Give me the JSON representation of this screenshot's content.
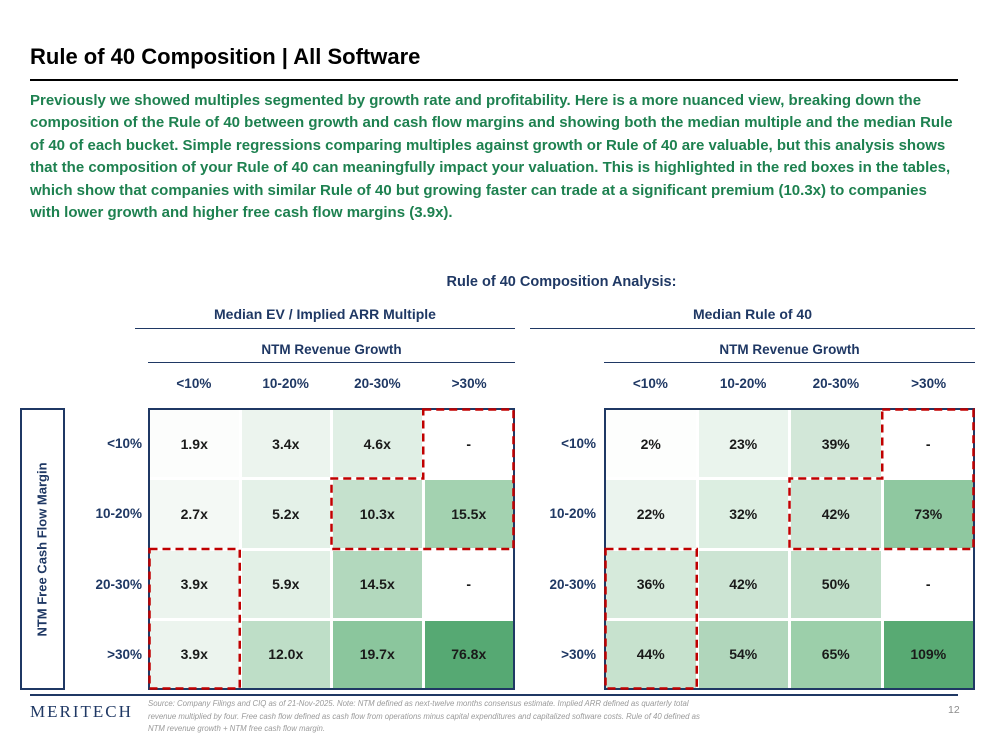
{
  "slide": {
    "title": "Rule of 40 Composition | All Software",
    "intro": "Previously we showed multiples segmented by growth rate and profitability. Here is a more nuanced view, breaking down the composition of the Rule of 40 between growth and cash flow margins and showing both the median multiple and the median Rule of 40 of each bucket. Simple regressions comparing multiples against growth or Rule of 40 are valuable, but this analysis shows that the composition of your Rule of 40 can meaningfully impact your valuation. This is highlighted in the red boxes in the tables, which show that companies with similar Rule of 40 but growing faster can trade at a significant premium (10.3x) to companies with lower growth and higher free cash flow margins (3.9x).",
    "section_heading": "Rule of 40 Composition Analysis:"
  },
  "footer": {
    "logo": "MERITECH",
    "page_number": "12",
    "source_lines": [
      "Source: Company Filings and CIQ as of 21-Nov-2025. Note: NTM defined as next-twelve months consensus estimate. Implied ARR defined as quarterly total",
      "revenue multiplied by four. Free cash flow defined as cash flow from operations minus capital expenditures and capitalized software costs. Rule of 40 defined as",
      "NTM revenue growth + NTM free cash flow margin."
    ]
  },
  "colors": {
    "navy": "#1f3864",
    "green_text": "#1e8150",
    "highlight_red": "#c00000"
  },
  "chart_data": [
    {
      "type": "heatmap",
      "title": "Median EV / Implied ARR Multiple",
      "x_axis_label": "NTM Revenue Growth",
      "y_axis_label": "NTM Free Cash Flow Margin",
      "x_categories": [
        "<10%",
        "10-20%",
        "20-30%",
        ">30%"
      ],
      "y_categories": [
        "<10%",
        "10-20%",
        "20-30%",
        ">30%"
      ],
      "values": [
        [
          "1.9x",
          "3.4x",
          "4.6x",
          "-"
        ],
        [
          "2.7x",
          "5.2x",
          "10.3x",
          "15.5x"
        ],
        [
          "3.9x",
          "5.9x",
          "14.5x",
          "-"
        ],
        [
          "3.9x",
          "12.0x",
          "19.7x",
          "76.8x"
        ]
      ],
      "cell_colors": [
        [
          "#fcfdfc",
          "#ecf4ee",
          "#e0efe5",
          "#ffffff"
        ],
        [
          "#f4f9f5",
          "#e4f1e8",
          "#c5e1cd",
          "#a3d2b0"
        ],
        [
          "#ecf4ee",
          "#e2f0e6",
          "#b2d8bd",
          "#ffffff"
        ],
        [
          "#ecf4ee",
          "#bedec7",
          "#8bc69d",
          "#56a973"
        ]
      ],
      "red_box_regions": [
        {
          "description": "high-growth step region",
          "cells": [
            [
              0,
              3
            ],
            [
              1,
              2
            ],
            [
              1,
              3
            ]
          ]
        },
        {
          "description": "low-growth high-margin column",
          "cells": [
            [
              2,
              0
            ],
            [
              3,
              0
            ]
          ]
        }
      ]
    },
    {
      "type": "heatmap",
      "title": "Median Rule of 40",
      "x_axis_label": "NTM Revenue Growth",
      "y_axis_label": "NTM Free Cash Flow Margin",
      "x_categories": [
        "<10%",
        "10-20%",
        "20-30%",
        ">30%"
      ],
      "y_categories": [
        "<10%",
        "10-20%",
        "20-30%",
        ">30%"
      ],
      "values": [
        [
          "2%",
          "23%",
          "39%",
          "-"
        ],
        [
          "22%",
          "32%",
          "42%",
          "73%"
        ],
        [
          "36%",
          "42%",
          "50%",
          "-"
        ],
        [
          "44%",
          "54%",
          "65%",
          "109%"
        ]
      ],
      "cell_colors": [
        [
          "#fdfefd",
          "#eaf4ed",
          "#d2e7d8",
          "#ffffff"
        ],
        [
          "#ebf4ee",
          "#dceee1",
          "#cce4d3",
          "#8fc8a0"
        ],
        [
          "#d6eadb",
          "#cce4d3",
          "#c1dfc9",
          "#ffffff"
        ],
        [
          "#c7e2ce",
          "#b0d6bb",
          "#9ccfaa",
          "#58aa73"
        ]
      ],
      "red_box_regions": [
        {
          "description": "high-growth step region",
          "cells": [
            [
              0,
              3
            ],
            [
              1,
              2
            ],
            [
              1,
              3
            ]
          ]
        },
        {
          "description": "low-growth high-margin column",
          "cells": [
            [
              2,
              0
            ],
            [
              3,
              0
            ]
          ]
        }
      ]
    }
  ]
}
